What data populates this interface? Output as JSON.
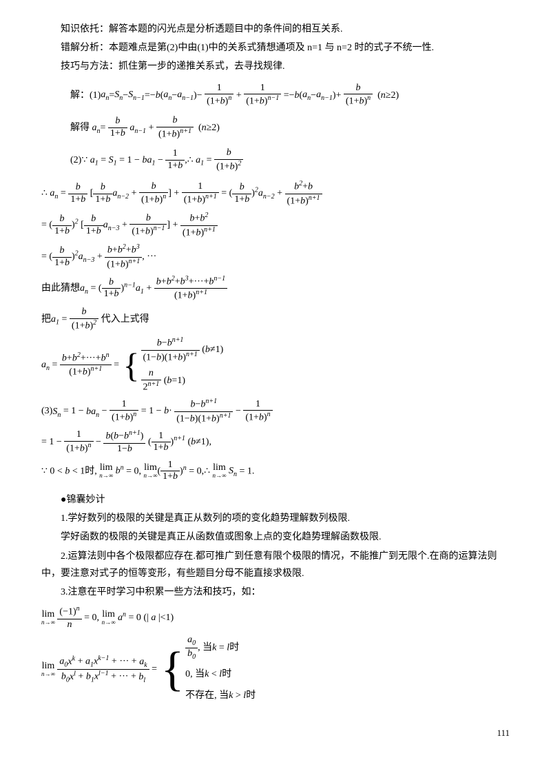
{
  "intro": {
    "line1": "知识依托：解答本题的闪光点是分析透题目中的条件间的相互关系.",
    "line2": "错解分析：本题难点是第(2)中由(1)中的关系式猜想通项及 n=1 与 n=2 时的式子不统一性.",
    "line3": "技巧与方法：抓住第一步的递推关系式，去寻找规律."
  },
  "solution": {
    "part1_label": "解：(1)",
    "part1_expr": "a_n = S_n − S_{n−1} = −b(a_n − a_{n−1}) − 1/(1+b)^n + 1/(1+b)^{n−1} = −b(a_n − a_{n−1}) + b/(1+b)^n  (n≥2)",
    "part1_solve_label": "解得",
    "part1_solve_expr": "a_n = b/(1+b)·a_{n−1} + b/(1+b)^{n+1}  (n≥2)",
    "part2_label": "(2)",
    "part2_a1": "∵ a_1 = S_1 = 1 − ba_1 − 1/(1+b), ∴ a_1 = b/(1+b)²",
    "part2_line1": "∴ a_n = b/(1+b)[b/(1+b)·a_{n−2} + b/(1+b)^n] + 1/(1+b)^{n+1} = (b/(1+b))²·a_{n−2} + (b²+b)/(1+b)^{n+1}",
    "part2_line2": "= (b/(1+b))²[b/(1+b)·a_{n−3} + b/(1+b)^{n−1}] + (b+b²)/(1+b)^{n+1}",
    "part2_line3": "= (b/(1+b))²·a_{n−3} + (b+b²+b³)/(1+b)^{n+1}, ···",
    "guess_label": "由此猜想",
    "guess_expr": "a_n = (b/(1+b))^{n−1}·a_1 + (b+b²+b³+···+b^{n−1})/(1+b)^{n+1}",
    "sub_label": "把",
    "sub_expr": "a_1 = b/(1+b)²",
    "sub_after": "代入上式得",
    "an_result": "a_n = (b+b²+···+b^n)/(1+b)^{n+1}",
    "case1": "(b−b^{n+1})/((1−b)(1+b)^{n+1})  (b≠1)",
    "case2": "n/2^{n+1}  (b=1)",
    "part3_label": "(3)",
    "part3_line1": "S_n = 1 − ba_n − 1/(1+b)^n = 1 − b·(b−b^{n+1})/((1−b)(1+b)^{n+1}) − 1/(1+b)^n",
    "part3_line2": "= 1 − 1/(1+b)^n − b(b−b^{n+1})/(1−b)·(1/(1+b))^{n+1} (b≠1),",
    "part3_lim": "∵ 0 < b < 1时, lim_{n→∞} b^n = 0, lim_{n→∞}(1/(1+b))^n = 0, ∴ lim_{n→∞} S_n = 1."
  },
  "tips": {
    "marker": "●锦囊妙计",
    "t1a": "1.学好数列的极限的关键是真正从数列的项的变化趋势理解数列极限.",
    "t1b": "学好函数的极限的关键是真正从函数值或图象上点的变化趋势理解函数极限.",
    "t2": "2.运算法则中各个极限都应存在.都可推广到任意有限个极限的情况，不能推广到无限个.在商的运算法则中，要注意对式子的恒等变形，有些题目分母不能直接求极限.",
    "t3": "3.注意在平时学习中积累一些方法和技巧，如：",
    "formula1": "lim_{n→∞} (−1)^n/n = 0, lim_{n→∞} a^n = 0 (|a|<1)",
    "formula2_lhs": "lim_{n→∞} (a_0 x^k + a_1 x^{k−1} + ··· + a_k)/(b_0 x^l + b_1 x^{l−1} + ··· + b_l)",
    "formula2_case1": "a_0/b_0, 当k = l时",
    "formula2_case2": "0, 当k < l时",
    "formula2_case3": "不存在, 当k > l时"
  },
  "page_number": "111",
  "colors": {
    "text": "#000000",
    "bg": "#ffffff"
  },
  "fontsize": {
    "body": 14,
    "sub": 10
  }
}
